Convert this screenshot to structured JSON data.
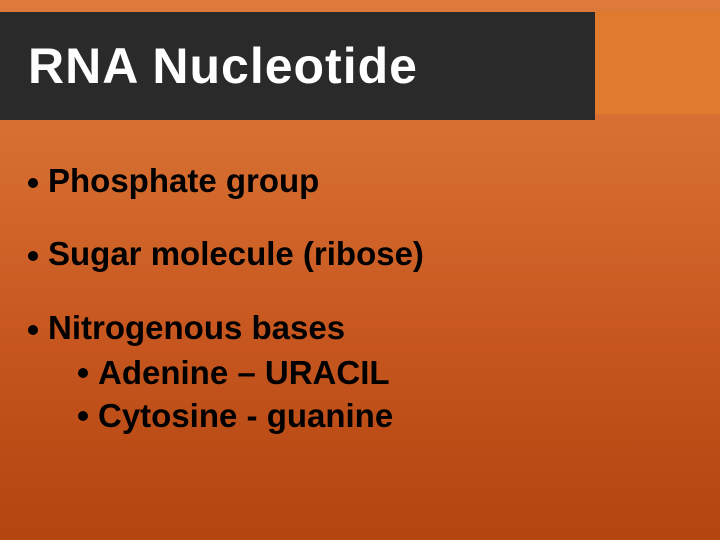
{
  "slide": {
    "title": "RNA Nucleotide",
    "bullets": [
      {
        "text": "Phosphate group"
      },
      {
        "text": "Sugar molecule (ribose)"
      },
      {
        "text": "Nitrogenous bases"
      }
    ],
    "subBullets": [
      {
        "text": "Adenine – URACIL"
      },
      {
        "text": "Cytosine - guanine"
      }
    ]
  },
  "style": {
    "background_gradient_top": "#dd7a3b",
    "background_gradient_bottom": "#b44410",
    "title_bar_color": "#2a2a2a",
    "accent_block_color": "#e07b2e",
    "title_color": "#ffffff",
    "text_color": "#000000",
    "bullet_color": "#000000",
    "title_fontsize": 50,
    "body_fontsize": 33,
    "font_family": "Comic Sans MS"
  }
}
